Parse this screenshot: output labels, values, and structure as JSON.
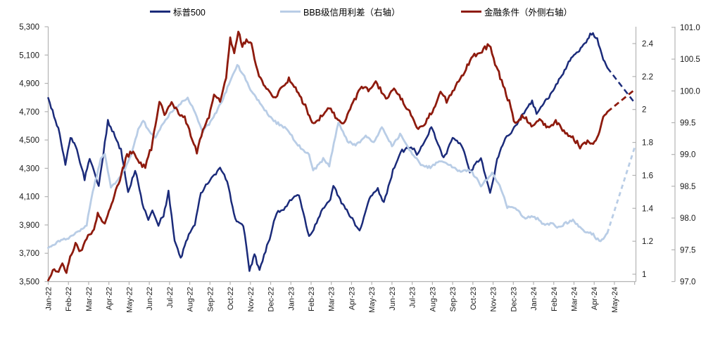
{
  "chart_data": {
    "type": "line",
    "title": "",
    "x_unit": "months since Jan-2022",
    "x_labels": [
      "Jan-22",
      "Feb-22",
      "Mar-22",
      "Apr-22",
      "May-22",
      "Jun-22",
      "Jul-22",
      "Aug-22",
      "Sep-22",
      "Oct-22",
      "Nov-22",
      "Dec-22",
      "Jan-23",
      "Feb-23",
      "Mar-23",
      "Apr-23",
      "May-23",
      "Jun-23",
      "Jul-23",
      "Aug-23",
      "Sep-23",
      "Oct-23",
      "Nov-23",
      "Dec-23",
      "Jan-24",
      "Feb-24",
      "Mar-24",
      "Apr-24",
      "May-24"
    ],
    "axes": {
      "left": {
        "tick_labels": [
          "5,300",
          "5,100",
          "4,900",
          "4,700",
          "4,500",
          "4,300",
          "4,100",
          "3,900",
          "3,700",
          "3,500"
        ],
        "tick_values": [
          5300,
          5100,
          4900,
          4700,
          4500,
          4300,
          4100,
          3900,
          3700,
          3500
        ],
        "min": 3500,
        "max": 5300
      },
      "right_inner": {
        "tick_labels": [
          "2.4",
          "2.2",
          "2",
          "1.8",
          "1.6",
          "1.4",
          "1.2",
          "1"
        ],
        "tick_values": [
          2.4,
          2.2,
          2,
          1.8,
          1.6,
          1.4,
          1.2,
          1
        ],
        "min": 0.955,
        "max": 2.5
      },
      "right_outer": {
        "tick_labels": [
          "101.0",
          "100.5",
          "100.0",
          "99.5",
          "99.0",
          "98.5",
          "98.0",
          "97.5",
          "97.0"
        ],
        "tick_values": [
          101,
          100.5,
          100,
          99.5,
          99,
          98.5,
          98,
          97.5,
          97
        ],
        "min": 97,
        "max": 101
      },
      "grid": false
    },
    "legend_position": "top",
    "series": [
      {
        "name": "标普500",
        "axis": "left",
        "color": "#1b2b7a",
        "width": 2.5,
        "dash_pattern": "8 5",
        "jitter": 20,
        "points": [
          [
            0,
            4797
          ],
          [
            0.5,
            4577
          ],
          [
            0.85,
            4330
          ],
          [
            1.1,
            4520
          ],
          [
            1.35,
            4470
          ],
          [
            1.8,
            4225
          ],
          [
            2.05,
            4375
          ],
          [
            2.5,
            4173
          ],
          [
            2.95,
            4630
          ],
          [
            3.3,
            4530
          ],
          [
            3.6,
            4425
          ],
          [
            3.95,
            4131
          ],
          [
            4.3,
            4295
          ],
          [
            4.65,
            4060
          ],
          [
            4.95,
            3930
          ],
          [
            5.15,
            4005
          ],
          [
            5.45,
            3900
          ],
          [
            5.7,
            3970
          ],
          [
            5.95,
            4130
          ],
          [
            6.25,
            3790
          ],
          [
            6.55,
            3667
          ],
          [
            6.95,
            3825
          ],
          [
            7.25,
            3910
          ],
          [
            7.55,
            4120
          ],
          [
            7.8,
            4180
          ],
          [
            8.5,
            4305
          ],
          [
            8.85,
            4210
          ],
          [
            9.25,
            3940
          ],
          [
            9.65,
            3890
          ],
          [
            9.95,
            3585
          ],
          [
            10.2,
            3690
          ],
          [
            10.45,
            3577
          ],
          [
            10.75,
            3720
          ],
          [
            10.95,
            3810
          ],
          [
            11.3,
            3990
          ],
          [
            11.65,
            4005
          ],
          [
            11.95,
            4080
          ],
          [
            12.4,
            4110
          ],
          [
            12.9,
            3820
          ],
          [
            13.05,
            3850
          ],
          [
            13.5,
            3990
          ],
          [
            13.95,
            4077
          ],
          [
            14.1,
            4180
          ],
          [
            14.5,
            4060
          ],
          [
            14.9,
            3970
          ],
          [
            15.4,
            3855
          ],
          [
            15.95,
            4109
          ],
          [
            16.3,
            4150
          ],
          [
            16.6,
            4061
          ],
          [
            17.05,
            4280
          ],
          [
            17.5,
            4426
          ],
          [
            17.95,
            4450
          ],
          [
            18.3,
            4400
          ],
          [
            18.95,
            4589
          ],
          [
            19.55,
            4370
          ],
          [
            20.0,
            4516
          ],
          [
            20.5,
            4450
          ],
          [
            20.85,
            4274
          ],
          [
            21.4,
            4373
          ],
          [
            21.85,
            4117
          ],
          [
            22.2,
            4360
          ],
          [
            22.6,
            4510
          ],
          [
            22.97,
            4568
          ],
          [
            23.4,
            4670
          ],
          [
            23.93,
            4770
          ],
          [
            24.15,
            4689
          ],
          [
            24.5,
            4760
          ],
          [
            24.97,
            4846
          ],
          [
            25.4,
            4960
          ],
          [
            25.93,
            5096
          ],
          [
            26.4,
            5150
          ],
          [
            26.87,
            5254
          ],
          [
            27.15,
            5210
          ],
          [
            27.45,
            5070
          ],
          [
            27.65,
            5010
          ]
        ],
        "dash": [
          [
            27.65,
            5010
          ],
          [
            29.0,
            4762
          ]
        ]
      },
      {
        "name": "BBB级信用利差（右轴）",
        "axis": "right_inner",
        "color": "#b9cde6",
        "width": 2.8,
        "dash_pattern": "6 5",
        "jitter": 0.013,
        "points": [
          [
            0,
            1.16
          ],
          [
            0.5,
            1.2
          ],
          [
            1.0,
            1.22
          ],
          [
            1.5,
            1.26
          ],
          [
            1.9,
            1.3
          ],
          [
            2.2,
            1.5
          ],
          [
            2.6,
            1.7
          ],
          [
            2.8,
            1.73
          ],
          [
            3.1,
            1.53
          ],
          [
            3.45,
            1.57
          ],
          [
            3.8,
            1.64
          ],
          [
            4.1,
            1.72
          ],
          [
            4.45,
            1.88
          ],
          [
            4.7,
            1.93
          ],
          [
            5.0,
            1.87
          ],
          [
            5.3,
            1.83
          ],
          [
            5.6,
            1.9
          ],
          [
            6.0,
            1.97
          ],
          [
            6.4,
            2.02
          ],
          [
            6.9,
            2.07
          ],
          [
            7.2,
            2.0
          ],
          [
            7.65,
            1.86
          ],
          [
            8.1,
            1.94
          ],
          [
            8.6,
            2.05
          ],
          [
            9.0,
            2.17
          ],
          [
            9.35,
            2.27
          ],
          [
            9.7,
            2.2
          ],
          [
            10.0,
            2.12
          ],
          [
            10.4,
            2.05
          ],
          [
            10.85,
            1.97
          ],
          [
            11.3,
            1.92
          ],
          [
            11.9,
            1.87
          ],
          [
            12.35,
            1.78
          ],
          [
            12.9,
            1.73
          ],
          [
            13.1,
            1.63
          ],
          [
            13.6,
            1.7
          ],
          [
            13.9,
            1.66
          ],
          [
            14.35,
            1.92
          ],
          [
            14.8,
            1.81
          ],
          [
            15.2,
            1.78
          ],
          [
            15.7,
            1.84
          ],
          [
            16.1,
            1.8
          ],
          [
            16.5,
            1.89
          ],
          [
            17.0,
            1.78
          ],
          [
            17.4,
            1.85
          ],
          [
            18.0,
            1.73
          ],
          [
            18.5,
            1.66
          ],
          [
            18.9,
            1.65
          ],
          [
            19.4,
            1.69
          ],
          [
            19.9,
            1.66
          ],
          [
            20.4,
            1.62
          ],
          [
            20.9,
            1.63
          ],
          [
            21.4,
            1.54
          ],
          [
            21.95,
            1.61
          ],
          [
            22.4,
            1.52
          ],
          [
            22.7,
            1.41
          ],
          [
            23.1,
            1.4
          ],
          [
            23.6,
            1.34
          ],
          [
            24.05,
            1.35
          ],
          [
            24.5,
            1.3
          ],
          [
            24.9,
            1.31
          ],
          [
            25.3,
            1.28
          ],
          [
            25.6,
            1.31
          ],
          [
            25.95,
            1.33
          ],
          [
            26.3,
            1.28
          ],
          [
            26.6,
            1.26
          ],
          [
            26.95,
            1.24
          ],
          [
            27.25,
            1.2
          ],
          [
            27.45,
            1.22
          ],
          [
            27.65,
            1.25
          ]
        ],
        "dash": [
          [
            27.65,
            1.25
          ],
          [
            29.0,
            1.77
          ]
        ]
      },
      {
        "name": "金融条件（外侧右轴）",
        "axis": "right_outer",
        "color": "#8e1b0e",
        "width": 2.8,
        "dash_pattern": "8 5",
        "jitter": 0.058,
        "points": [
          [
            0,
            97.02
          ],
          [
            0.3,
            97.21
          ],
          [
            0.45,
            97.15
          ],
          [
            0.7,
            97.25
          ],
          [
            0.9,
            97.18
          ],
          [
            1.15,
            97.45
          ],
          [
            1.35,
            97.6
          ],
          [
            1.6,
            97.45
          ],
          [
            1.9,
            97.68
          ],
          [
            2.2,
            97.8
          ],
          [
            2.45,
            98.05
          ],
          [
            2.8,
            97.9
          ],
          [
            3.2,
            98.3
          ],
          [
            3.55,
            98.6
          ],
          [
            3.9,
            98.98
          ],
          [
            4.2,
            99.05
          ],
          [
            4.5,
            98.85
          ],
          [
            4.8,
            98.82
          ],
          [
            5.1,
            99.1
          ],
          [
            5.5,
            99.83
          ],
          [
            5.75,
            99.65
          ],
          [
            6.1,
            99.8
          ],
          [
            6.45,
            99.65
          ],
          [
            6.75,
            99.58
          ],
          [
            7.05,
            99.3
          ],
          [
            7.35,
            99.03
          ],
          [
            7.65,
            99.37
          ],
          [
            7.95,
            99.6
          ],
          [
            8.2,
            99.95
          ],
          [
            8.5,
            99.83
          ],
          [
            8.8,
            100.2
          ],
          [
            9.0,
            100.82
          ],
          [
            9.2,
            100.58
          ],
          [
            9.4,
            100.95
          ],
          [
            9.6,
            100.68
          ],
          [
            9.8,
            100.82
          ],
          [
            10.05,
            100.74
          ],
          [
            10.35,
            100.3
          ],
          [
            10.65,
            100.1
          ],
          [
            11.0,
            99.95
          ],
          [
            11.25,
            99.88
          ],
          [
            11.55,
            100.05
          ],
          [
            11.9,
            100.18
          ],
          [
            12.3,
            100.0
          ],
          [
            12.65,
            99.8
          ],
          [
            13.05,
            99.5
          ],
          [
            13.4,
            99.55
          ],
          [
            13.9,
            99.74
          ],
          [
            14.2,
            99.6
          ],
          [
            14.6,
            99.48
          ],
          [
            15.0,
            99.76
          ],
          [
            15.5,
            100.07
          ],
          [
            15.9,
            100.0
          ],
          [
            16.2,
            100.15
          ],
          [
            16.7,
            99.88
          ],
          [
            17.1,
            100.03
          ],
          [
            17.5,
            99.84
          ],
          [
            17.8,
            99.7
          ],
          [
            18.3,
            99.41
          ],
          [
            18.6,
            99.46
          ],
          [
            19.0,
            99.7
          ],
          [
            19.4,
            99.96
          ],
          [
            19.7,
            99.84
          ],
          [
            20.0,
            100.0
          ],
          [
            20.45,
            100.22
          ],
          [
            21.0,
            100.55
          ],
          [
            21.45,
            100.62
          ],
          [
            21.8,
            100.73
          ],
          [
            22.1,
            100.45
          ],
          [
            22.35,
            100.22
          ],
          [
            22.8,
            99.82
          ],
          [
            23.1,
            99.48
          ],
          [
            23.5,
            99.62
          ],
          [
            23.9,
            99.45
          ],
          [
            24.3,
            99.56
          ],
          [
            24.7,
            99.42
          ],
          [
            25.1,
            99.52
          ],
          [
            25.5,
            99.36
          ],
          [
            25.8,
            99.3
          ],
          [
            26.3,
            99.13
          ],
          [
            26.6,
            99.21
          ],
          [
            26.95,
            99.16
          ],
          [
            27.2,
            99.3
          ],
          [
            27.45,
            99.58
          ],
          [
            27.65,
            99.67
          ]
        ],
        "dash": [
          [
            27.65,
            99.67
          ],
          [
            29.0,
            100.02
          ]
        ]
      }
    ]
  },
  "style": {
    "axis_color": "#b3b3b3",
    "tick_text_color": "#1a1a1a"
  }
}
